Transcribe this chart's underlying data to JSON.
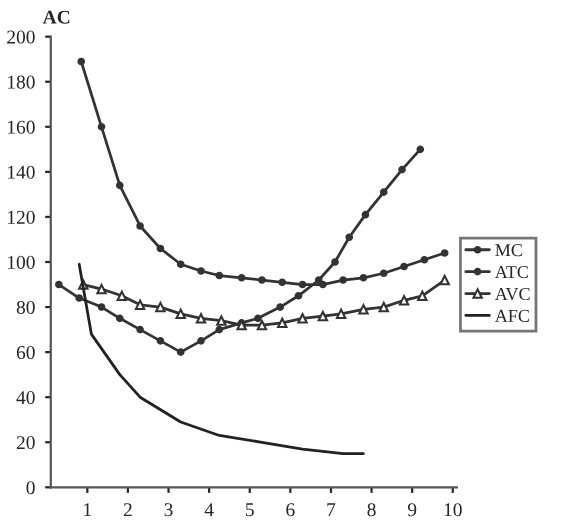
{
  "chart_data": {
    "type": "line",
    "ylabel": "AC",
    "xlim": [
      0.1,
      10.1
    ],
    "xticks": [
      1,
      2,
      3,
      4,
      5,
      6,
      7,
      8,
      9,
      10
    ],
    "ylim": [
      0,
      200
    ],
    "yticks": [
      0,
      20,
      40,
      60,
      80,
      100,
      120,
      140,
      160,
      180,
      200
    ],
    "grid": false,
    "legend": "right",
    "series": [
      {
        "name": "MC",
        "color": "#333333",
        "marker": "circle",
        "x": [
          0.3,
          0.8,
          1.35,
          1.8,
          2.3,
          2.8,
          3.3,
          3.8,
          4.25,
          4.8,
          5.2,
          5.75,
          6.2,
          6.7,
          7.1,
          7.45,
          7.85,
          8.3,
          8.75,
          9.2
        ],
        "values": [
          90,
          84,
          80,
          75,
          70,
          65,
          60,
          65,
          70,
          73,
          75,
          80,
          85,
          92,
          100,
          111,
          121,
          131,
          141,
          150
        ]
      },
      {
        "name": "ATC",
        "color": "#333333",
        "marker": "circle",
        "x": [
          0.85,
          1.35,
          1.8,
          2.3,
          2.8,
          3.3,
          3.8,
          4.25,
          4.8,
          5.3,
          5.8,
          6.3,
          6.8,
          7.3,
          7.8,
          8.3,
          8.8,
          9.3,
          9.8
        ],
        "values": [
          189,
          160,
          134,
          116,
          106,
          99,
          96,
          94,
          93,
          92,
          91,
          90,
          90,
          92,
          93,
          95,
          98,
          101,
          104
        ]
      },
      {
        "name": "AVC",
        "color": "#333333",
        "marker": "triangle",
        "x": [
          0.9,
          1.35,
          1.85,
          2.3,
          2.8,
          3.3,
          3.8,
          4.3,
          4.8,
          5.3,
          5.8,
          6.3,
          6.8,
          7.25,
          7.8,
          8.3,
          8.8,
          9.25,
          9.8
        ],
        "values": [
          90,
          88,
          85,
          81,
          80,
          77,
          75,
          74,
          72,
          72,
          73,
          75,
          76,
          77,
          79,
          80,
          83,
          85,
          92
        ]
      },
      {
        "name": "AFC",
        "color": "#222222",
        "marker": "none",
        "x": [
          0.8,
          1.1,
          1.8,
          2.3,
          3.3,
          4.25,
          5.3,
          6.3,
          7.3,
          7.8
        ],
        "values": [
          99,
          68,
          50,
          40,
          29,
          23,
          20,
          17,
          15,
          15
        ]
      }
    ]
  }
}
